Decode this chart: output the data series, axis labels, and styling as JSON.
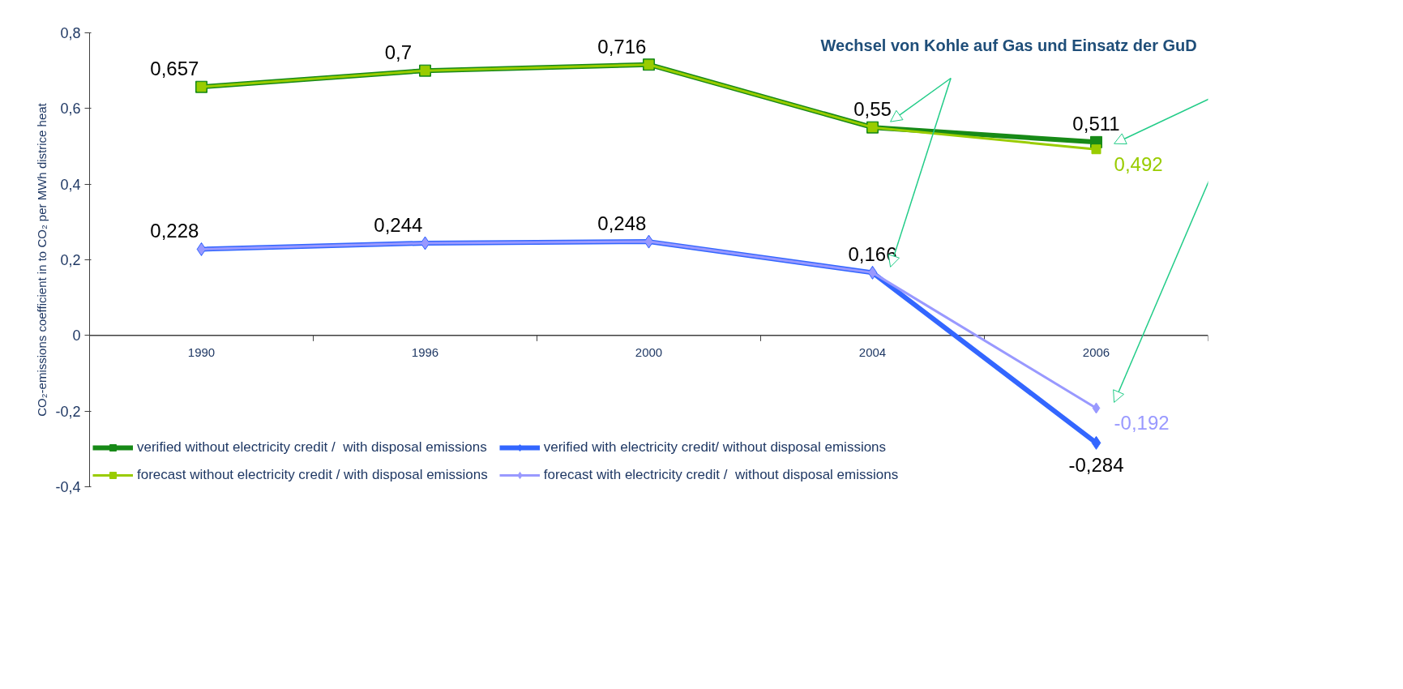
{
  "chart_data": {
    "type": "line",
    "ylabel": "CO₂-emissions coefficient in to CO₂ per MWh districe heat",
    "categories": [
      "1990",
      "1996",
      "2000",
      "2004",
      "2006"
    ],
    "ylim": [
      -0.4,
      0.8
    ],
    "yticks": [
      {
        "value": -0.4,
        "label": "-0,4"
      },
      {
        "value": -0.2,
        "label": "-0,2"
      },
      {
        "value": 0,
        "label": "0"
      },
      {
        "value": 0.2,
        "label": "0,2"
      },
      {
        "value": 0.4,
        "label": "0,4"
      },
      {
        "value": 0.6,
        "label": "0,6"
      },
      {
        "value": 0.8,
        "label": "0,8"
      }
    ],
    "grid": false,
    "legend": "bottom",
    "series": [
      {
        "name": "verified without electricity credit /  with disposal emissions",
        "color": "#178a17",
        "marker": "square",
        "values": [
          0.657,
          0.7,
          0.716,
          0.55,
          0.511
        ],
        "value_labels": [
          "0,657",
          "0,7",
          "0,716",
          "0,55",
          "0,511"
        ]
      },
      {
        "name": "forecast without electricity credit / with disposal emissions",
        "color": "#99cc00",
        "marker": "square",
        "values": [
          0.657,
          0.7,
          0.716,
          0.55,
          0.492
        ],
        "value_labels": [
          null,
          null,
          null,
          null,
          "0,492"
        ]
      },
      {
        "name": "verified with electricity credit/ without disposal emissions",
        "color": "#3366ff",
        "marker": "diamond",
        "values": [
          0.228,
          0.244,
          0.248,
          0.166,
          -0.284
        ],
        "value_labels": [
          "0,228",
          "0,244",
          "0,248",
          "0,166",
          "-0,284"
        ]
      },
      {
        "name": "forecast with electricity credit /  without disposal emissions",
        "color": "#9999ff",
        "marker": "diamond",
        "values": [
          0.228,
          0.244,
          0.248,
          0.166,
          -0.192
        ],
        "value_labels": [
          null,
          null,
          null,
          null,
          "-0,192"
        ]
      }
    ],
    "annotations": [
      "Wechsel von Kohle auf Gas und Einsatz der GuD"
    ]
  }
}
